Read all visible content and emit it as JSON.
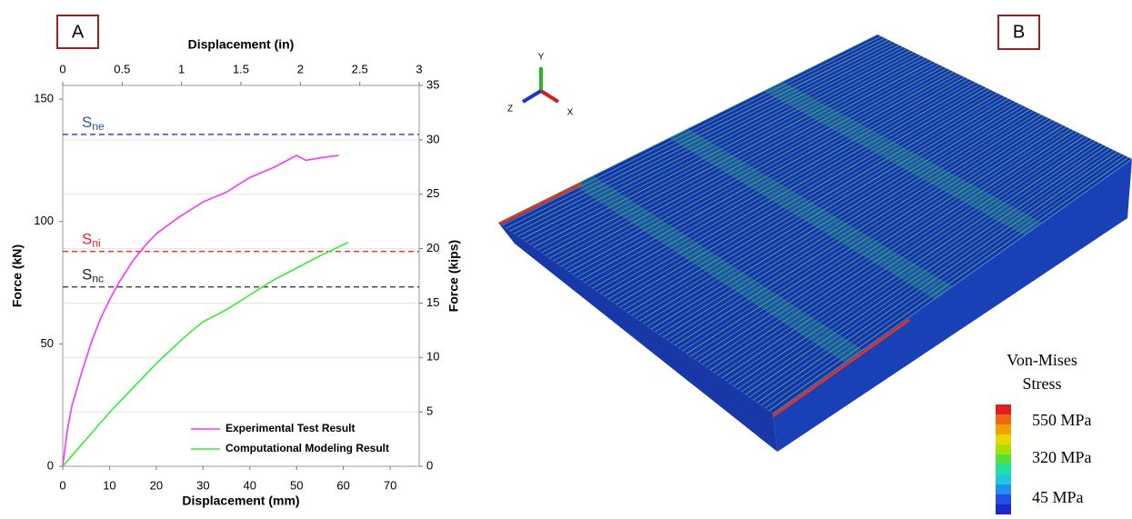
{
  "chart_data": {
    "type": "line",
    "panel_label": "A",
    "xlabel": "Displacement (mm)",
    "ylabel": "Force (kN)",
    "x2label": "Displacement (in)",
    "y2label": "Force (kips)",
    "xlim": [
      0,
      76.2
    ],
    "xticks": [
      0,
      10,
      20,
      30,
      40,
      50,
      60,
      70
    ],
    "x2lim": [
      0,
      3
    ],
    "x2ticks": [
      0,
      0.5,
      1,
      1.5,
      2,
      2.5,
      3
    ],
    "ylim": [
      0,
      155.6
    ],
    "yticks": [
      0,
      50,
      100,
      150
    ],
    "y2lim": [
      0,
      35
    ],
    "y2ticks": [
      0,
      5,
      10,
      15,
      20,
      25,
      30,
      35
    ],
    "grid": true,
    "series": [
      {
        "name": "Experimental Test Result",
        "color": "#ff33ff",
        "x": [
          0,
          1,
          2,
          4,
          6,
          8,
          10,
          12,
          15,
          18,
          20,
          25,
          30,
          35,
          40,
          45,
          50,
          52,
          55,
          59
        ],
        "values": [
          0,
          15,
          25,
          38,
          50,
          60,
          68,
          75,
          84,
          91,
          95,
          102,
          108,
          112,
          118,
          122,
          127,
          125,
          126,
          127
        ]
      },
      {
        "name": "Computational Modeling Result",
        "color": "#33ee33",
        "x": [
          0,
          5,
          10,
          15,
          20,
          25,
          28,
          30,
          35,
          40,
          45,
          50,
          55,
          61
        ],
        "values": [
          0,
          11,
          22,
          32,
          42,
          51,
          56,
          59,
          64,
          70,
          76,
          81,
          86,
          91.5
        ]
      }
    ],
    "reference_lines": [
      {
        "label": "S",
        "subscript": "ne",
        "value": 135.6,
        "color": "#3344ee",
        "label_color": "#2f5597"
      },
      {
        "label": "S",
        "subscript": "ni",
        "value": 87.8,
        "color": "#ee3333",
        "label_color": "#ee2222"
      },
      {
        "label": "S",
        "subscript": "nc",
        "value": 73.3,
        "color": "#444444",
        "label_color": "#222222"
      }
    ]
  },
  "panel_b": {
    "panel_label": "B",
    "axes": [
      "Y",
      "Z",
      "X"
    ],
    "legend_title": [
      "Von-Mises",
      "Stress"
    ],
    "colorbar_labels": [
      "550 MPa",
      "320 MPa",
      "45 MPa"
    ]
  }
}
